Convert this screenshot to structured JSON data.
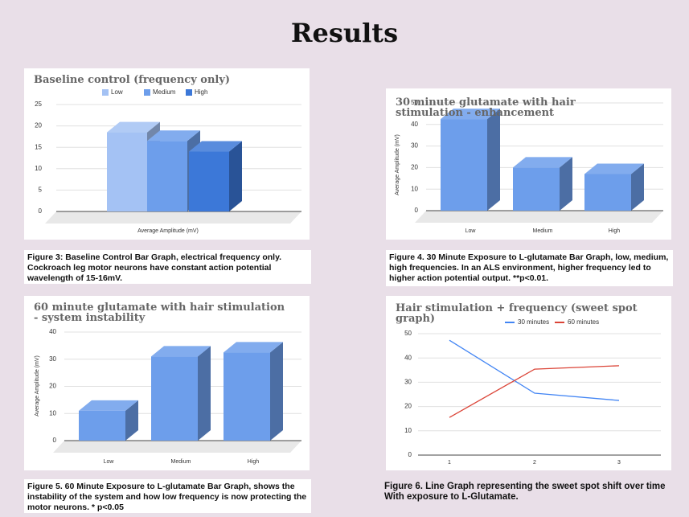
{
  "title": "Results",
  "chart_data": [
    {
      "type": "bar3d",
      "title": "Baseline control (frequency only)",
      "categories": [
        "Average Amplitude (mV)"
      ],
      "series": [
        {
          "name": "Low",
          "color": "#a4c2f4",
          "values": [
            18.5
          ]
        },
        {
          "name": "Medium",
          "color": "#6d9eeb",
          "values": [
            16.5
          ]
        },
        {
          "name": "High",
          "color": "#3c78d8",
          "values": [
            14
          ]
        }
      ],
      "legend": "top",
      "ylim": [
        0,
        25
      ],
      "yticks": [
        0,
        5,
        10,
        15,
        20,
        25
      ],
      "grid": true,
      "caption": "Figure 3: Baseline Control Bar Graph, electrical frequency only. Cockroach leg motor neurons have constant action potential wavelength of 15-16mV."
    },
    {
      "type": "bar3d",
      "title": "30 minute glutamate with hair stimulation - enhancement",
      "y_label": "Average Amplitude (mV)",
      "categories": [
        "Low",
        "Medium",
        "High"
      ],
      "values": [
        42.5,
        20,
        17
      ],
      "color": "#6d9eeb",
      "ylim": [
        0,
        50
      ],
      "yticks": [
        0,
        10,
        20,
        30,
        40,
        50
      ],
      "grid": true,
      "caption": "Figure 4. 30 Minute Exposure to L-glutamate Bar Graph, low, medium, high frequencies. In an ALS environment, higher frequency led to higher action potential output. **p<0.01."
    },
    {
      "type": "bar3d",
      "title": "60 minute glutamate with hair stimulation - system instability",
      "y_label": "Average Amplitude (mV)",
      "categories": [
        "Low",
        "Medium",
        "High"
      ],
      "values": [
        11,
        31,
        32.5
      ],
      "color": "#6d9eeb",
      "ylim": [
        0,
        40
      ],
      "yticks": [
        0,
        10,
        20,
        30,
        40
      ],
      "grid": true,
      "caption": "Figure 5. 60 Minute Exposure to L-glutamate Bar Graph, shows the instability of the system and how low frequency is now protecting the motor neurons. * p<0.05"
    },
    {
      "type": "line",
      "title": "Hair stimulation + frequency (sweet spot graph)",
      "categories": [
        "1",
        "2",
        "3"
      ],
      "series": [
        {
          "name": "30 minutes",
          "color": "#4285f4",
          "values": [
            47.3,
            25.5,
            22.5
          ]
        },
        {
          "name": "60 minutes",
          "color": "#db4437",
          "values": [
            15.5,
            35.4,
            36.8
          ]
        }
      ],
      "legend": "top",
      "ylim": [
        0,
        50
      ],
      "yticks": [
        0,
        10,
        20,
        30,
        40,
        50
      ],
      "grid": true,
      "caption": "Figure 6. Line Graph representing the sweet spot shift over time With exposure to L-Glutamate."
    }
  ]
}
